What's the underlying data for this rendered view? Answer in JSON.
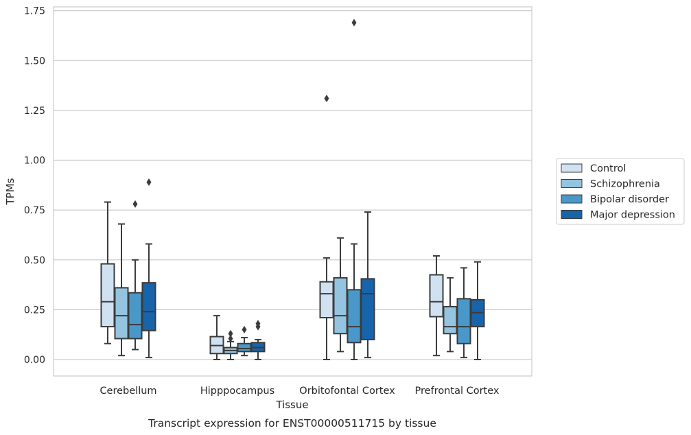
{
  "chart_data": {
    "type": "box",
    "caption": "Transcript expression for ENST00000511715 by tissue",
    "xlabel": "Tissue",
    "ylabel": "TPMs",
    "ylim": [
      -0.08,
      1.78
    ],
    "yticks": [
      0.0,
      0.25,
      0.5,
      0.75,
      1.0,
      1.25,
      1.5,
      1.75
    ],
    "ytick_labels": [
      "0.00",
      "0.25",
      "0.50",
      "0.75",
      "1.00",
      "1.25",
      "1.50",
      "1.75"
    ],
    "grid": "horizontal",
    "legend_position": "right",
    "categories": [
      "Cerebellum",
      "Hipppocampus",
      "Orbitofontal Cortex",
      "Prefrontal Cortex"
    ],
    "series": [
      {
        "name": "Control",
        "color": "#d0e1f2",
        "boxes": [
          {
            "whisker_low": 0.08,
            "q1": 0.165,
            "median": 0.29,
            "q3": 0.48,
            "whisker_high": 0.79,
            "outliers": []
          },
          {
            "whisker_low": 0.0,
            "q1": 0.03,
            "median": 0.07,
            "q3": 0.115,
            "whisker_high": 0.22,
            "outliers": []
          },
          {
            "whisker_low": 0.0,
            "q1": 0.21,
            "median": 0.33,
            "q3": 0.39,
            "whisker_high": 0.51,
            "outliers": [
              1.31
            ]
          },
          {
            "whisker_low": 0.02,
            "q1": 0.215,
            "median": 0.29,
            "q3": 0.425,
            "whisker_high": 0.52,
            "outliers": []
          }
        ]
      },
      {
        "name": "Schizophrenia",
        "color": "#94c4df",
        "boxes": [
          {
            "whisker_low": 0.02,
            "q1": 0.105,
            "median": 0.22,
            "q3": 0.36,
            "whisker_high": 0.68,
            "outliers": []
          },
          {
            "whisker_low": 0.0,
            "q1": 0.03,
            "median": 0.045,
            "q3": 0.06,
            "whisker_high": 0.09,
            "outliers": [
              0.13,
              0.105
            ]
          },
          {
            "whisker_low": 0.04,
            "q1": 0.13,
            "median": 0.22,
            "q3": 0.41,
            "whisker_high": 0.61,
            "outliers": []
          },
          {
            "whisker_low": 0.04,
            "q1": 0.13,
            "median": 0.165,
            "q3": 0.265,
            "whisker_high": 0.41,
            "outliers": []
          }
        ]
      },
      {
        "name": "Bipolar disorder",
        "color": "#4a98c9",
        "boxes": [
          {
            "whisker_low": 0.05,
            "q1": 0.105,
            "median": 0.175,
            "q3": 0.335,
            "whisker_high": 0.5,
            "outliers": [
              0.78
            ]
          },
          {
            "whisker_low": 0.02,
            "q1": 0.04,
            "median": 0.055,
            "q3": 0.08,
            "whisker_high": 0.11,
            "outliers": [
              0.15
            ]
          },
          {
            "whisker_low": 0.0,
            "q1": 0.085,
            "median": 0.165,
            "q3": 0.35,
            "whisker_high": 0.58,
            "outliers": [
              1.69
            ]
          },
          {
            "whisker_low": 0.01,
            "q1": 0.08,
            "median": 0.165,
            "q3": 0.305,
            "whisker_high": 0.46,
            "outliers": []
          }
        ]
      },
      {
        "name": "Major depression",
        "color": "#1764ab",
        "boxes": [
          {
            "whisker_low": 0.01,
            "q1": 0.145,
            "median": 0.24,
            "q3": 0.385,
            "whisker_high": 0.58,
            "outliers": [
              0.89
            ]
          },
          {
            "whisker_low": 0.0,
            "q1": 0.04,
            "median": 0.06,
            "q3": 0.085,
            "whisker_high": 0.1,
            "outliers": [
              0.18,
              0.165
            ]
          },
          {
            "whisker_low": 0.01,
            "q1": 0.1,
            "median": 0.33,
            "q3": 0.405,
            "whisker_high": 0.74,
            "outliers": []
          },
          {
            "whisker_low": 0.0,
            "q1": 0.165,
            "median": 0.235,
            "q3": 0.3,
            "whisker_high": 0.49,
            "outliers": []
          }
        ]
      }
    ]
  }
}
